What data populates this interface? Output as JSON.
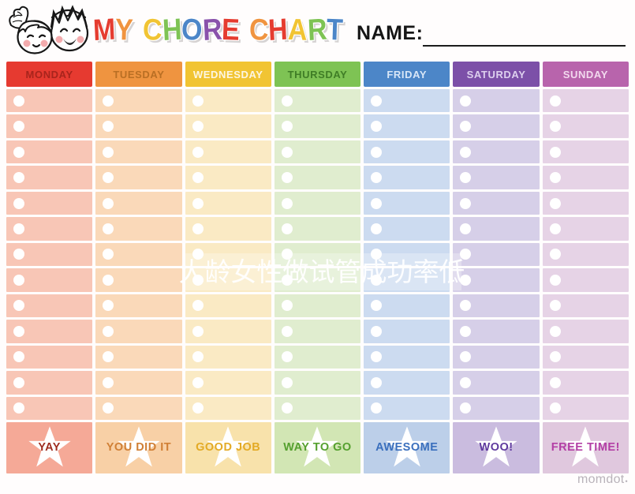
{
  "header": {
    "title_text": "MY CHORE CHART",
    "title_letters": [
      {
        "ch": "M",
        "color": "#e53c30"
      },
      {
        "ch": "Y",
        "color": "#f09440"
      },
      {
        "ch": " ",
        "color": ""
      },
      {
        "ch": "C",
        "color": "#f1c433"
      },
      {
        "ch": "H",
        "color": "#7ec354"
      },
      {
        "ch": "O",
        "color": "#4c86c8"
      },
      {
        "ch": "R",
        "color": "#8a52ab"
      },
      {
        "ch": "E",
        "color": "#e53c30"
      },
      {
        "ch": " ",
        "color": ""
      },
      {
        "ch": "C",
        "color": "#f09440"
      },
      {
        "ch": "H",
        "color": "#e53c30"
      },
      {
        "ch": "A",
        "color": "#f1c433"
      },
      {
        "ch": "R",
        "color": "#7ec354"
      },
      {
        "ch": "T",
        "color": "#4c86c8"
      }
    ],
    "name_label": "NAME:",
    "name_value": "",
    "kids_illustration": "girl-and-boy-cartoon-faces"
  },
  "table": {
    "row_count": 13,
    "days": [
      {
        "label": "MONDAY",
        "header_bg": "#e63a30",
        "header_fg": "#a8241c",
        "cell_bg": "#f8c6b6",
        "reward_bg": "#f5a997",
        "reward_label": "YAY",
        "reward_fg": "#9e2d20"
      },
      {
        "label": "TUESDAY",
        "header_bg": "#ef9440",
        "header_fg": "#b96f24",
        "cell_bg": "#fad9b9",
        "reward_bg": "#f8d0a6",
        "reward_label": "YOU DID IT",
        "reward_fg": "#d07f35"
      },
      {
        "label": "WEDNESDAY",
        "header_bg": "#f1c433",
        "header_fg": "#fdf6e3",
        "cell_bg": "#faeac4",
        "reward_bg": "#f8e2ab",
        "reward_label": "GOOD JOB",
        "reward_fg": "#e3aa25"
      },
      {
        "label": "THURSDAY",
        "header_bg": "#7ec354",
        "header_fg": "#3f7d26",
        "cell_bg": "#e0edcf",
        "reward_bg": "#d2e6b4",
        "reward_label": "WAY TO GO",
        "reward_fg": "#55a02f"
      },
      {
        "label": "FRIDAY",
        "header_bg": "#4c86c8",
        "header_fg": "#d8e6f7",
        "cell_bg": "#ccdbf0",
        "reward_bg": "#bccfe9",
        "reward_label": "AWESOME",
        "reward_fg": "#3a6fbd"
      },
      {
        "label": "SATURDAY",
        "header_bg": "#7c50a8",
        "header_fg": "#ddd0ee",
        "cell_bg": "#d6cfe8",
        "reward_bg": "#cabcdf",
        "reward_label": "WOO!",
        "reward_fg": "#5f3a9e"
      },
      {
        "label": "SUNDAY",
        "header_bg": "#b864ac",
        "header_fg": "#f2d9ee",
        "cell_bg": "#e6d3e6",
        "reward_bg": "#e0c8de",
        "reward_label": "FREE TIME!",
        "reward_fg": "#b33fa5"
      }
    ]
  },
  "watermark": {
    "text": "大龄女性做试管成功率低"
  },
  "footer": {
    "brand": "momdot",
    "mark": "•"
  }
}
